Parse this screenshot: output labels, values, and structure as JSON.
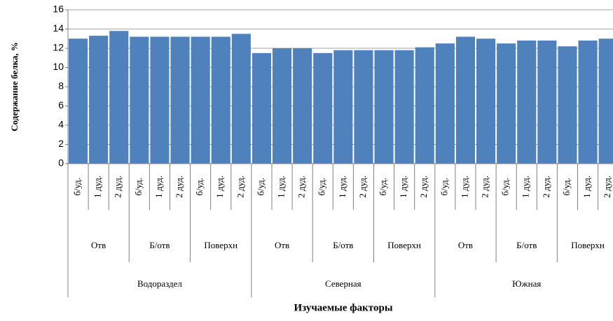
{
  "chart_data": {
    "type": "bar",
    "ylabel": "Содержание белка, %",
    "xlabel": "Изучаемые факторы",
    "color": "#4f81bd",
    "categories": [
      "б/уд.",
      "1 дуд.",
      "2 дуд.",
      "б/уд.",
      "1 дуд.",
      "2 дуд.",
      "б/уд.",
      "1 дуд.",
      "2 дуд.",
      "б/уд.",
      "1 дуд.",
      "2 дуд.",
      "б/уд.",
      "1 дуд.",
      "2 дуд.",
      "б/уд.",
      "1 дуд.",
      "2 дуд.",
      "б/уд.",
      "1 дуд.",
      "2 дуд.",
      "б/уд.",
      "1 дуд.",
      "2 дуд.",
      "б/уд.",
      "1 дуд.",
      "2 дуд."
    ],
    "subgroups": [
      "Отв",
      "Б/отв",
      "Поверхн",
      "Отв",
      "Б/отв",
      "Поверхн",
      "Отв",
      "Б/отв",
      "Поверхн"
    ],
    "groups": [
      "Водораздел",
      "Северная",
      "Южная"
    ],
    "values": [
      13.0,
      13.3,
      13.8,
      13.2,
      13.2,
      13.2,
      13.2,
      13.2,
      13.5,
      11.5,
      12.0,
      12.0,
      11.5,
      11.8,
      11.8,
      11.8,
      11.8,
      12.1,
      12.5,
      13.2,
      13.0,
      12.5,
      12.8,
      12.8,
      12.2,
      12.8,
      13.0
    ],
    "ylim": [
      0,
      16
    ],
    "yticks": [
      0,
      2,
      4,
      6,
      8,
      10,
      12,
      14,
      16
    ],
    "grid": true
  }
}
